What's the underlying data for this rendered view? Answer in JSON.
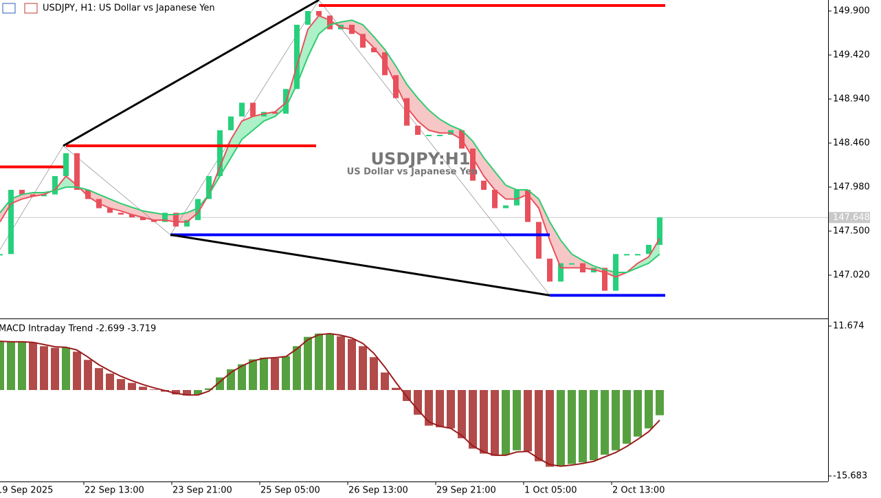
{
  "chart_data": {
    "type": "candle",
    "title": "USDJPY, H1:  US Dollar vs Japanese Yen",
    "watermark": "USDJPY:H1",
    "watermark_subtitle": "US Dollar vs Japanese Yen",
    "x": [
      0,
      4,
      8,
      12,
      16,
      20,
      24,
      28,
      32,
      36,
      40,
      44,
      48,
      52,
      56,
      60,
      64,
      68,
      72,
      76,
      80,
      84,
      88,
      92,
      96,
      100,
      104,
      108,
      112,
      116,
      120,
      124,
      128,
      132,
      136,
      140,
      144,
      148,
      152,
      156,
      160,
      164,
      168,
      172,
      176,
      180,
      184,
      188,
      192,
      196,
      200,
      204,
      208,
      212,
      216,
      220,
      224,
      228,
      232,
      236,
      240
    ],
    "xlim": [
      0,
      301.25
    ],
    "xticks": [
      {
        "value": -1.5,
        "label": "19 Sep 2025"
      },
      {
        "value": 30.5,
        "label": "22 Sep 13:00"
      },
      {
        "value": 62.5,
        "label": "23 Sep 21:00"
      },
      {
        "value": 94.5,
        "label": "25 Sep 05:00"
      },
      {
        "value": 126.5,
        "label": "26 Sep 13:00"
      },
      {
        "value": 158.5,
        "label": "29 Sep 21:00"
      },
      {
        "value": 190.5,
        "label": "1 Oct 05:00"
      },
      {
        "value": 222.5,
        "label": "2 Oct 13:00"
      }
    ],
    "ylim": [
      146.555,
      150.02
    ],
    "yticks": [
      {
        "value": 149.9,
        "label": "149.900"
      },
      {
        "value": 149.42,
        "label": "149.420"
      },
      {
        "value": 148.94,
        "label": "148.940"
      },
      {
        "value": 148.46,
        "label": "148.460"
      },
      {
        "value": 147.98,
        "label": "147.980"
      },
      {
        "value": 147.5,
        "label": "147.500"
      },
      {
        "value": 147.02,
        "label": "147.020"
      }
    ],
    "current_price": {
      "value": 147.648,
      "label": "147.648"
    },
    "up_color": "#26d07c",
    "down_color": "#e8505b",
    "close": [
      147.25,
      147.95,
      147.9,
      147.88,
      147.9,
      148.1,
      148.35,
      147.95,
      147.85,
      147.75,
      147.7,
      147.68,
      147.65,
      147.62,
      147.6,
      147.7,
      147.55,
      147.62,
      147.85,
      148.1,
      148.6,
      148.75,
      148.9,
      148.75,
      148.8,
      148.78,
      149.05,
      149.75,
      149.9,
      149.85,
      149.7,
      149.75,
      149.65,
      149.5,
      149.45,
      149.2,
      148.95,
      148.65,
      148.55,
      148.55,
      148.55,
      148.6,
      148.4,
      148.05,
      147.95,
      147.75,
      147.78,
      147.95,
      147.6,
      147.2,
      146.95,
      147.15,
      147.15,
      147.05,
      147.1,
      146.85,
      147.25,
      147.25,
      147.25,
      147.35,
      147.65
    ],
    "series": [
      {
        "color": "#e8505b",
        "values": [
          147.6,
          147.8,
          147.85,
          147.88,
          147.9,
          147.95,
          148.1,
          148.0,
          147.88,
          147.8,
          147.75,
          147.72,
          147.68,
          147.65,
          147.62,
          147.62,
          147.6,
          147.6,
          147.7,
          147.9,
          148.2,
          148.5,
          148.7,
          148.75,
          148.78,
          148.8,
          148.9,
          149.3,
          149.7,
          149.85,
          149.8,
          149.72,
          149.7,
          149.62,
          149.5,
          149.35,
          149.1,
          148.85,
          148.7,
          148.6,
          148.57,
          148.57,
          148.5,
          148.3,
          148.1,
          147.95,
          147.85,
          147.85,
          147.9,
          147.75,
          147.4,
          147.1,
          147.1,
          147.1,
          147.08,
          147.05,
          147.0,
          147.05,
          147.15,
          147.22,
          147.42
        ]
      },
      {
        "color": "#2ecc71",
        "values": [
          147.7,
          147.85,
          147.9,
          147.92,
          147.92,
          147.94,
          147.98,
          147.98,
          147.95,
          147.9,
          147.85,
          147.8,
          147.76,
          147.72,
          147.7,
          147.68,
          147.68,
          147.7,
          147.75,
          147.9,
          148.1,
          148.3,
          148.5,
          148.6,
          148.7,
          148.75,
          148.85,
          149.1,
          149.4,
          149.65,
          149.75,
          149.78,
          149.8,
          149.75,
          149.62,
          149.48,
          149.3,
          149.1,
          148.95,
          148.82,
          148.72,
          148.65,
          148.6,
          148.48,
          148.3,
          148.15,
          148.0,
          147.95,
          147.95,
          147.85,
          147.6,
          147.4,
          147.25,
          147.18,
          147.12,
          147.08,
          147.05,
          147.05,
          147.1,
          147.15,
          147.25
        ]
      }
    ],
    "band_up_color": "#aef0c8",
    "band_down_color": "#f7c6c6",
    "levels": [
      {
        "color": "#ff0000",
        "x": [
          116,
          242
        ],
        "value": 149.96
      },
      {
        "color": "#ff0000",
        "x": [
          24,
          115
        ],
        "value": 148.43
      },
      {
        "color": "#ff0000",
        "x": [
          -2,
          23
        ],
        "value": 148.2
      },
      {
        "color": "#0000ff",
        "x": [
          62,
          200
        ],
        "value": 147.46
      },
      {
        "color": "#0000ff",
        "x": [
          200,
          242
        ],
        "value": 146.8
      }
    ],
    "trend_lines": [
      {
        "color": "#000000",
        "x": [
          23,
          116
        ],
        "values": [
          148.43,
          150.02
        ]
      },
      {
        "color": "#000000",
        "x": [
          62,
          200
        ],
        "values": [
          147.46,
          146.8
        ]
      }
    ],
    "zigzag": {
      "color": "#888888",
      "x": [
        -2,
        23,
        62,
        116,
        200
      ],
      "values": [
        147.2,
        148.43,
        147.46,
        150.02,
        146.8
      ]
    },
    "macd": {
      "label": "MACD Intraday Trend  -2.699 -3.719",
      "ylim": [
        -16.69,
        12.68
      ],
      "yticks": [
        {
          "value": 11.674,
          "label": "11.674"
        },
        {
          "value": -15.683,
          "label": "-15.683"
        }
      ],
      "up_color": "#3a8f1e",
      "down_color": "#a52a2a",
      "signal_color": "#9b1c1c",
      "histogram": [
        8.8,
        8.8,
        8.9,
        8.7,
        8.0,
        7.7,
        7.8,
        7.0,
        5.5,
        4.0,
        3.0,
        2.0,
        1.3,
        0.6,
        0.1,
        -0.3,
        -0.8,
        -1.0,
        -0.8,
        0.3,
        2.3,
        3.8,
        4.7,
        5.6,
        5.9,
        5.8,
        6.2,
        8.0,
        9.7,
        10.3,
        10.3,
        9.8,
        9.3,
        8.0,
        6.0,
        3.2,
        0.4,
        -2.0,
        -4.5,
        -6.5,
        -6.8,
        -7.0,
        -8.8,
        -10.7,
        -11.6,
        -12.0,
        -11.8,
        -11.0,
        -11.2,
        -13.0,
        -14.0,
        -13.8,
        -13.5,
        -13.2,
        -12.8,
        -11.8,
        -11.0,
        -9.8,
        -8.5,
        -7.0,
        -4.6
      ],
      "signal": [
        8.9,
        8.8,
        8.8,
        8.7,
        8.3,
        7.9,
        7.8,
        7.3,
        6.0,
        4.6,
        3.5,
        2.5,
        1.7,
        1.0,
        0.4,
        -0.1,
        -0.6,
        -0.9,
        -0.9,
        -0.2,
        1.5,
        3.2,
        4.4,
        5.3,
        5.8,
        5.9,
        6.1,
        7.5,
        9.2,
        10.1,
        10.3,
        10.0,
        9.5,
        8.5,
        6.7,
        4.2,
        1.4,
        -1.2,
        -3.6,
        -5.8,
        -6.6,
        -7.0,
        -8.3,
        -10.2,
        -11.3,
        -11.9,
        -11.9,
        -11.3,
        -11.2,
        -12.5,
        -13.6,
        -13.9,
        -13.7,
        -13.4,
        -13.0,
        -12.2,
        -11.4,
        -10.3,
        -9.0,
        -7.6,
        -5.5
      ]
    }
  }
}
